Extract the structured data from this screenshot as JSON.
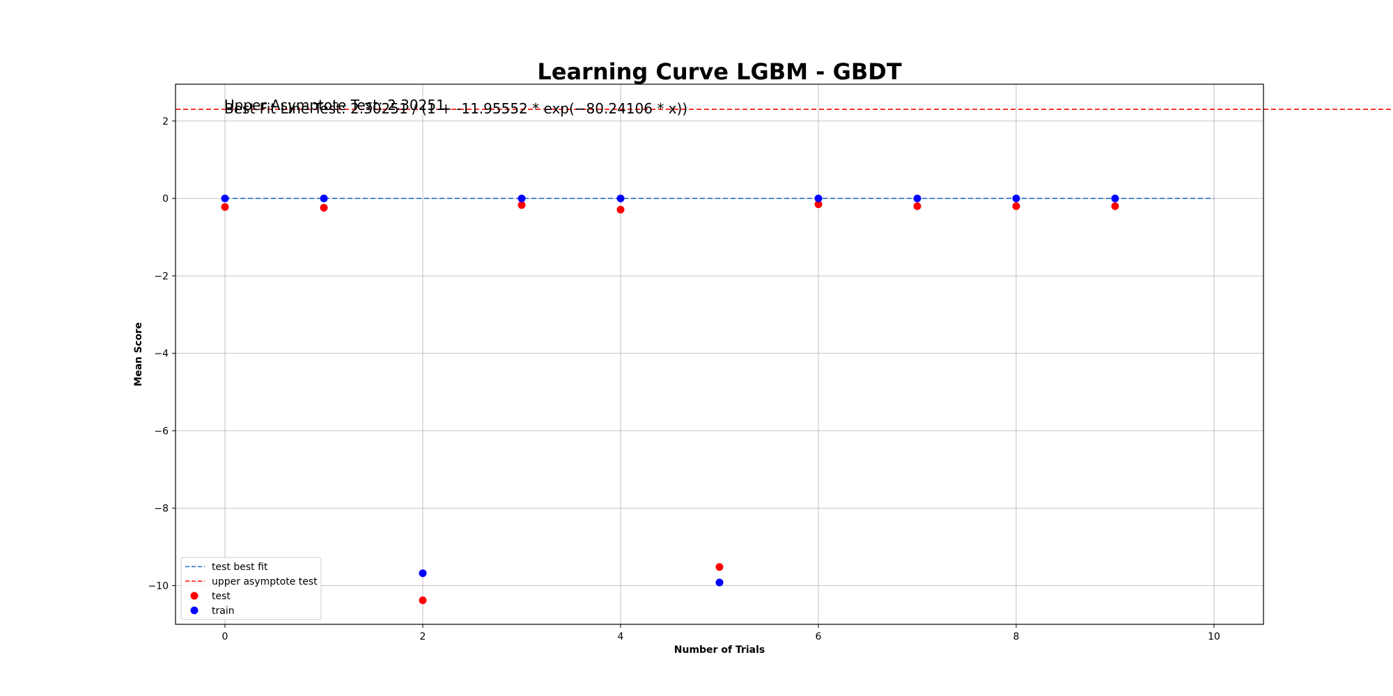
{
  "chart_data": {
    "type": "scatter",
    "title": "Learning Curve LGBM - GBDT",
    "xlabel": "Number of Trials",
    "ylabel": "Mean Score",
    "xlim": [
      -0.5,
      10.5
    ],
    "ylim": [
      -11,
      2.95
    ],
    "xticks": [
      0,
      2,
      4,
      6,
      8,
      10
    ],
    "yticks": [
      2,
      0,
      -2,
      -4,
      -6,
      -8,
      -10
    ],
    "xtick_labels": [
      "0",
      "2",
      "4",
      "6",
      "8",
      "10"
    ],
    "ytick_labels": [
      "2",
      "0",
      "−2",
      "−4",
      "−6",
      "−8",
      "−10"
    ],
    "grid": true,
    "legend_position": "lower-left",
    "annotations": [
      "Upper Asymptote Test: 2.30251",
      "Best Fit Line Test: 2.30251 / (1 + -11.95552 * exp(−80.24106 * x))"
    ],
    "series": [
      {
        "name": "test best fit",
        "kind": "line",
        "style": "dashed",
        "color": "#1f6fd1",
        "x": [
          0,
          10
        ],
        "y": [
          0,
          0
        ]
      },
      {
        "name": "upper asymptote test",
        "kind": "hline",
        "style": "dashed",
        "color": "#ff0000",
        "y": 2.30251
      },
      {
        "name": "test",
        "kind": "scatter",
        "color": "#ff0000",
        "x": [
          0,
          1,
          2,
          3,
          4,
          5,
          6,
          7,
          8,
          9
        ],
        "y": [
          -0.22,
          -0.24,
          -10.38,
          -0.17,
          -0.29,
          -9.52,
          -0.15,
          -0.2,
          -0.2,
          -0.2
        ]
      },
      {
        "name": "train",
        "kind": "scatter",
        "color": "#0000ff",
        "x": [
          0,
          1,
          2,
          3,
          4,
          5,
          6,
          7,
          8,
          9
        ],
        "y": [
          0,
          0,
          -9.68,
          0,
          0,
          -9.92,
          0,
          0,
          0,
          0
        ]
      }
    ]
  }
}
